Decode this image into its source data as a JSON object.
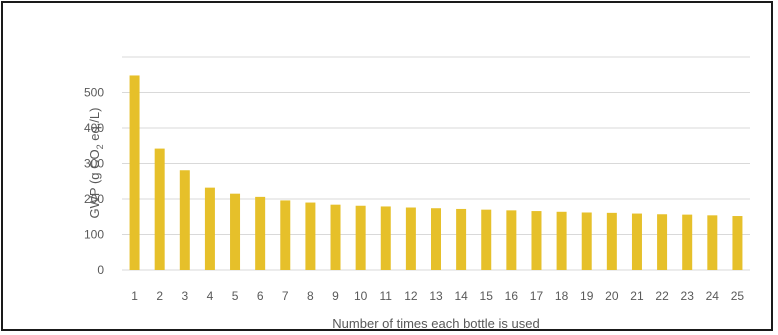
{
  "chart_data": {
    "type": "bar",
    "title": "",
    "xlabel": "Number of times each bottle is used",
    "ylabel_parts": {
      "pre": "GWP (g CO",
      "sub": "2",
      "post": " eq./L)"
    },
    "categories": [
      "1",
      "2",
      "3",
      "4",
      "5",
      "6",
      "7",
      "8",
      "9",
      "10",
      "11",
      "12",
      "13",
      "14",
      "15",
      "16",
      "17",
      "18",
      "19",
      "20",
      "21",
      "22",
      "23",
      "24",
      "25"
    ],
    "values": [
      548,
      342,
      281,
      232,
      215,
      206,
      196,
      190,
      184,
      181,
      179,
      176,
      174,
      172,
      170,
      168,
      166,
      164,
      162,
      161,
      159,
      157,
      156,
      154,
      152
    ],
    "ylim": [
      0,
      600
    ],
    "yticks": [
      0,
      100,
      200,
      300,
      400,
      500
    ],
    "grid": true,
    "bar_color": "#e6c02a",
    "grid_color": "#d9d9d9"
  }
}
